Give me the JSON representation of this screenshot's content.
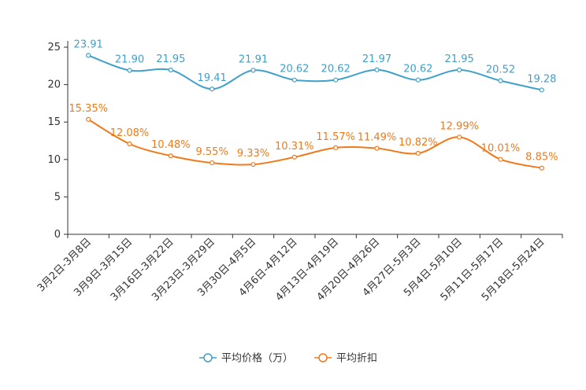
{
  "chart_data": {
    "type": "line",
    "title": "",
    "xlabel": "",
    "ylabel": "",
    "ylim": [
      0,
      25
    ],
    "yticks": [
      0,
      5,
      10,
      15,
      20,
      25
    ],
    "grid": false,
    "legend_position": "bottom-center",
    "categories": [
      "3月2日-3月8日",
      "3月9日-3月15日",
      "3月16日-3月22日",
      "3月23日-3月29日",
      "3月30日-4月5日",
      "4月6日-4月12日",
      "4月13日-4月19日",
      "4月20日-4月26日",
      "4月27日-5月3日",
      "5月4日-5月10日",
      "5月11日-5月17日",
      "5月18日-5月24日"
    ],
    "series": [
      {
        "name": "平均价格（万）",
        "color": "#3fa0c8",
        "values": [
          23.91,
          21.9,
          21.95,
          19.41,
          21.91,
          20.62,
          20.62,
          21.97,
          20.62,
          21.95,
          20.52,
          19.28
        ],
        "labels": [
          "23.91",
          "21.90",
          "21.95",
          "19.41",
          "21.91",
          "20.62",
          "20.62",
          "21.97",
          "20.62",
          "21.95",
          "20.52",
          "19.28"
        ]
      },
      {
        "name": "平均折扣",
        "color": "#f07a1a",
        "values": [
          15.35,
          12.08,
          10.48,
          9.55,
          9.33,
          10.31,
          11.57,
          11.49,
          10.82,
          12.99,
          10.01,
          8.85
        ],
        "labels": [
          "15.35%",
          "12.08%",
          "10.48%",
          "9.55%",
          "9.33%",
          "10.31%",
          "11.57%",
          "11.49%",
          "10.82%",
          "12.99%",
          "10.01%",
          "8.85%"
        ]
      }
    ]
  }
}
